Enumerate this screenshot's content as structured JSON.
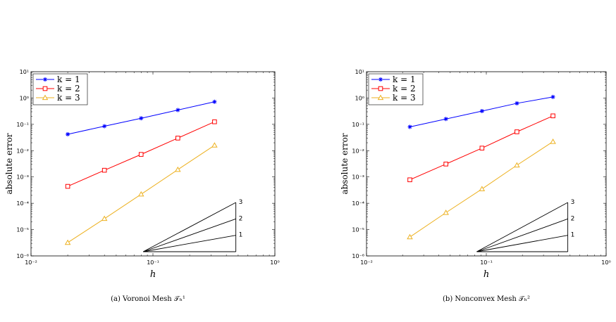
{
  "chart_data": [
    {
      "type": "line",
      "caption": "(a) Voronoi Mesh 𝒯ₕ¹",
      "xlabel": "h",
      "ylabel": "absolute error",
      "xscale": "log",
      "yscale": "log",
      "xlim": [
        0.01,
        1
      ],
      "ylim": [
        1e-06,
        10
      ],
      "x_ticks": [
        "10⁻²",
        "10⁻¹",
        "10⁰"
      ],
      "y_ticks": [
        "10⁻⁶",
        "10⁻⁵",
        "10⁻⁴",
        "10⁻³",
        "10⁻²",
        "10⁻¹",
        "10⁰",
        "10¹"
      ],
      "legend_position": "top-left",
      "slope_labels": [
        "1",
        "2",
        "3"
      ],
      "series": [
        {
          "name": "k = 1",
          "color": "#0000ff",
          "marker": "asterisk",
          "x": [
            0.02,
            0.04,
            0.08,
            0.16,
            0.32
          ],
          "y": [
            0.042,
            0.085,
            0.17,
            0.35,
            0.72
          ]
        },
        {
          "name": "k = 2",
          "color": "#ff0000",
          "marker": "square",
          "x": [
            0.02,
            0.04,
            0.08,
            0.16,
            0.32
          ],
          "y": [
            0.00044,
            0.0018,
            0.0072,
            0.03,
            0.125
          ]
        },
        {
          "name": "k = 3",
          "color": "#edb120",
          "marker": "triangle",
          "x": [
            0.02,
            0.04,
            0.08,
            0.16,
            0.32
          ],
          "y": [
            3.2e-06,
            2.6e-05,
            0.00022,
            0.0019,
            0.016
          ]
        }
      ]
    },
    {
      "type": "line",
      "caption": "(b) Nonconvex Mesh 𝒯ₕ²",
      "xlabel": "h",
      "ylabel": "absolute error",
      "xscale": "log",
      "yscale": "log",
      "xlim": [
        0.01,
        1
      ],
      "ylim": [
        1e-06,
        10
      ],
      "x_ticks": [
        "10⁻²",
        "10⁻¹",
        "10⁰"
      ],
      "y_ticks": [
        "10⁻⁶",
        "10⁻⁵",
        "10⁻⁴",
        "10⁻³",
        "10⁻²",
        "10⁻¹",
        "10⁰",
        "10¹"
      ],
      "legend_position": "top-left",
      "slope_labels": [
        "1",
        "2",
        "3"
      ],
      "series": [
        {
          "name": "k = 1",
          "color": "#0000ff",
          "marker": "asterisk",
          "x": [
            0.023,
            0.046,
            0.092,
            0.18,
            0.36
          ],
          "y": [
            0.08,
            0.16,
            0.32,
            0.63,
            1.1
          ]
        },
        {
          "name": "k = 2",
          "color": "#ff0000",
          "marker": "square",
          "x": [
            0.023,
            0.046,
            0.092,
            0.18,
            0.36
          ],
          "y": [
            0.00078,
            0.0031,
            0.0125,
            0.052,
            0.21
          ]
        },
        {
          "name": "k = 3",
          "color": "#edb120",
          "marker": "triangle",
          "x": [
            0.023,
            0.046,
            0.092,
            0.18,
            0.36
          ],
          "y": [
            5.2e-06,
            4.4e-05,
            0.00035,
            0.0028,
            0.022
          ]
        }
      ]
    }
  ]
}
